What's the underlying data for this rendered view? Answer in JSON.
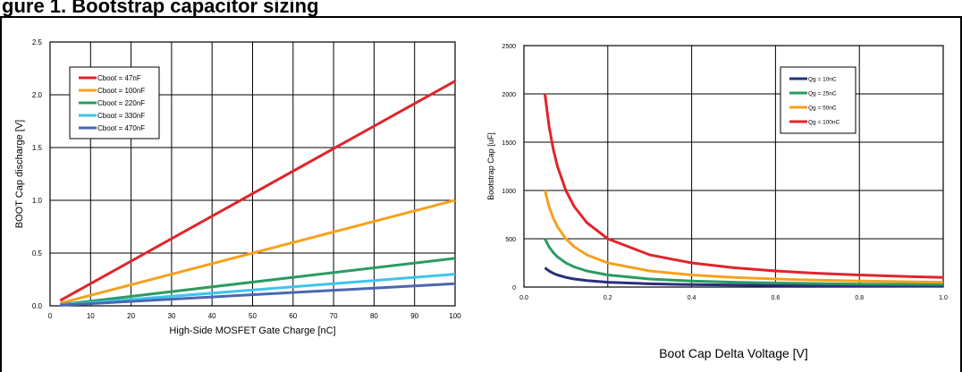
{
  "page": {
    "heading": "gure 1. Bootstrap capacitor sizing"
  },
  "colors": {
    "red": "#e0252b",
    "orange": "#f5a21d",
    "green": "#2a9b62",
    "cyan": "#3dc4ee",
    "blue": "#4a67b0",
    "navy": "#2a2f7c",
    "grid": "#000000"
  },
  "chart_data": [
    {
      "type": "line",
      "title": "",
      "xlabel": "High-Side MOSFET Gate Charge [nC]",
      "ylabel": "BOOT Cap discharge [V]",
      "xlim": [
        0,
        100
      ],
      "ylim": [
        0,
        2.5
      ],
      "xticks": [
        "0",
        "10",
        "20",
        "30",
        "40",
        "50",
        "60",
        "70",
        "80",
        "90",
        "100"
      ],
      "yticks": [
        "0.0",
        "0.5",
        "1.0",
        "1.5",
        "2.0",
        "2.5"
      ],
      "grid": true,
      "legend_position": "top-left",
      "series": [
        {
          "name": "Cboot = 47nF",
          "color": "red",
          "x": [
            2.5,
            100
          ],
          "y": [
            0.05,
            2.13
          ]
        },
        {
          "name": "Cboot = 100nF",
          "color": "orange",
          "x": [
            2.5,
            100
          ],
          "y": [
            0.025,
            1.0
          ]
        },
        {
          "name": "Cboot = 220nF",
          "color": "green",
          "x": [
            2.5,
            100
          ],
          "y": [
            0.011,
            0.45
          ]
        },
        {
          "name": "Cboot = 330nF",
          "color": "cyan",
          "x": [
            2.5,
            100
          ],
          "y": [
            0.008,
            0.3
          ]
        },
        {
          "name": "Cboot = 470nF",
          "color": "blue",
          "x": [
            2.5,
            100
          ],
          "y": [
            0.005,
            0.21
          ]
        }
      ]
    },
    {
      "type": "line",
      "title": "",
      "xlabel": "Boot Cap Delta Voltage [V]",
      "ylabel": "Bootstrap Cap [uF]",
      "xlim": [
        0,
        1.0
      ],
      "ylim": [
        0,
        2500
      ],
      "xticks": [
        "0.0",
        "0.2",
        "0.4",
        "0.6",
        "0.8",
        "1.0"
      ],
      "yticks": [
        "0",
        "500",
        "1000",
        "1500",
        "2000",
        "2500"
      ],
      "grid": true,
      "legend_position": "top-right",
      "series": [
        {
          "name": "Qg = 10nC",
          "color": "navy",
          "x": [
            0.05,
            0.06,
            0.07,
            0.08,
            0.1,
            0.12,
            0.15,
            0.2,
            0.3,
            0.4,
            0.5,
            0.6,
            0.7,
            0.8,
            0.9,
            1.0
          ],
          "y": [
            200,
            167,
            143,
            125,
            100,
            83,
            67,
            50,
            33,
            25,
            20,
            17,
            14,
            12.5,
            11,
            10
          ]
        },
        {
          "name": "Qg = 25nC",
          "color": "green",
          "x": [
            0.05,
            0.06,
            0.07,
            0.08,
            0.1,
            0.12,
            0.15,
            0.2,
            0.3,
            0.4,
            0.5,
            0.6,
            0.7,
            0.8,
            0.9,
            1.0
          ],
          "y": [
            500,
            417,
            357,
            313,
            250,
            208,
            167,
            125,
            83,
            63,
            50,
            42,
            36,
            31,
            28,
            25
          ]
        },
        {
          "name": "Qg = 50nC",
          "color": "orange",
          "x": [
            0.05,
            0.06,
            0.07,
            0.08,
            0.1,
            0.12,
            0.15,
            0.2,
            0.3,
            0.4,
            0.5,
            0.6,
            0.7,
            0.8,
            0.9,
            1.0
          ],
          "y": [
            1000,
            833,
            714,
            625,
            500,
            417,
            333,
            250,
            167,
            125,
            100,
            83,
            71,
            63,
            56,
            50
          ]
        },
        {
          "name": "Qg = 100nC",
          "color": "red",
          "x": [
            0.05,
            0.06,
            0.07,
            0.08,
            0.1,
            0.12,
            0.15,
            0.2,
            0.3,
            0.4,
            0.5,
            0.6,
            0.7,
            0.8,
            0.9,
            1.0
          ],
          "y": [
            2000,
            1667,
            1429,
            1250,
            1000,
            833,
            667,
            500,
            333,
            250,
            200,
            167,
            143,
            125,
            111,
            100
          ]
        }
      ]
    }
  ]
}
